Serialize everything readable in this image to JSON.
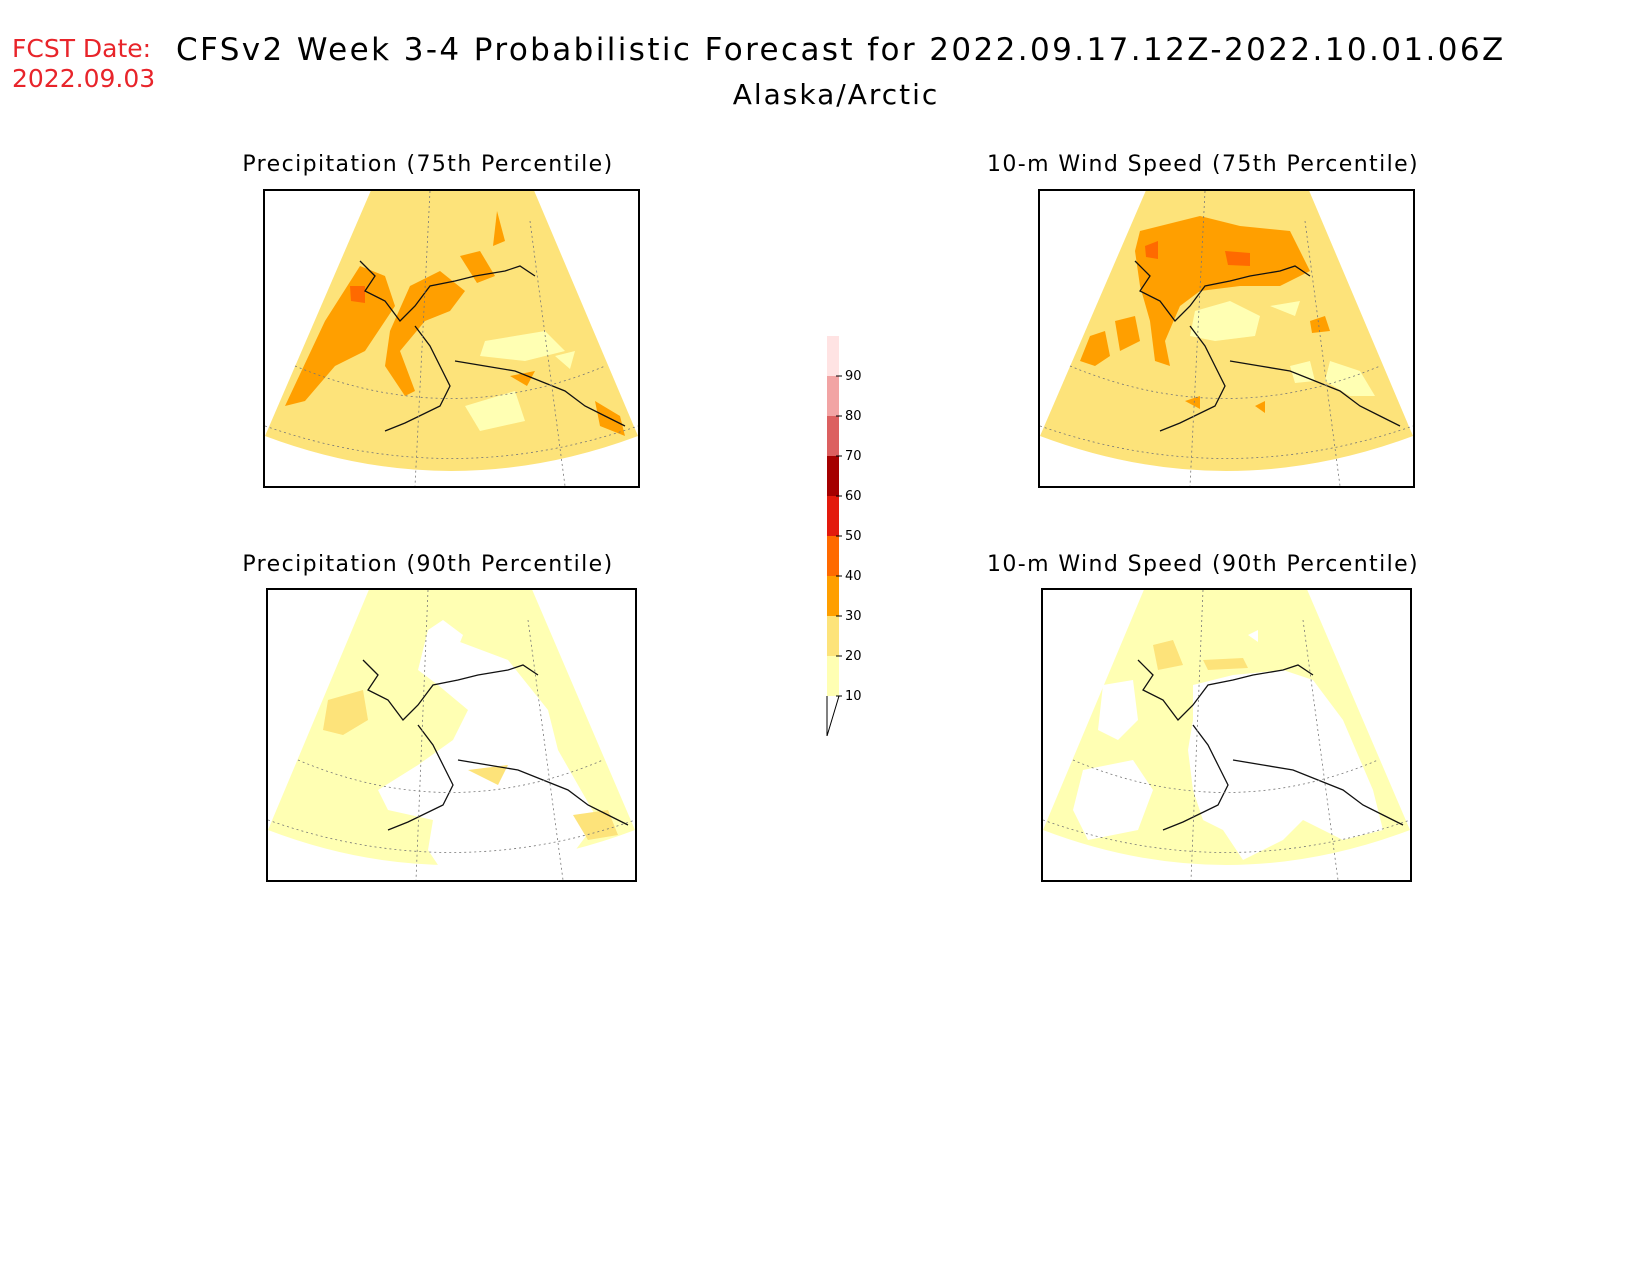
{
  "header": {
    "fcst_label": "FCST Date:",
    "fcst_date": "2022.09.03",
    "title": "CFSv2 Week 3-4 Probabilistic Forecast for 2022.09.17.12Z-2022.10.01.06Z",
    "region": "Alaska/Arctic"
  },
  "panels": [
    {
      "title": "Precipitation (75th Percentile)",
      "variable": "precipitation",
      "percentile": 75
    },
    {
      "title": "10-m Wind Speed (75th Percentile)",
      "variable": "wind-speed",
      "percentile": 75
    },
    {
      "title": "Precipitation (90th Percentile)",
      "variable": "precipitation",
      "percentile": 90
    },
    {
      "title": "10-m Wind Speed (90th Percentile)",
      "variable": "wind-speed",
      "percentile": 90
    }
  ],
  "colorbar": {
    "levels": [
      "10",
      "20",
      "30",
      "40",
      "50",
      "60",
      "70",
      "80",
      "90"
    ],
    "colors": [
      "#ffffb3",
      "#fde37a",
      "#ff9f00",
      "#ff6a00",
      "#e31a0c",
      "#a50000",
      "#dc6060",
      "#f2a4a4",
      "#ffe3e3"
    ]
  }
}
